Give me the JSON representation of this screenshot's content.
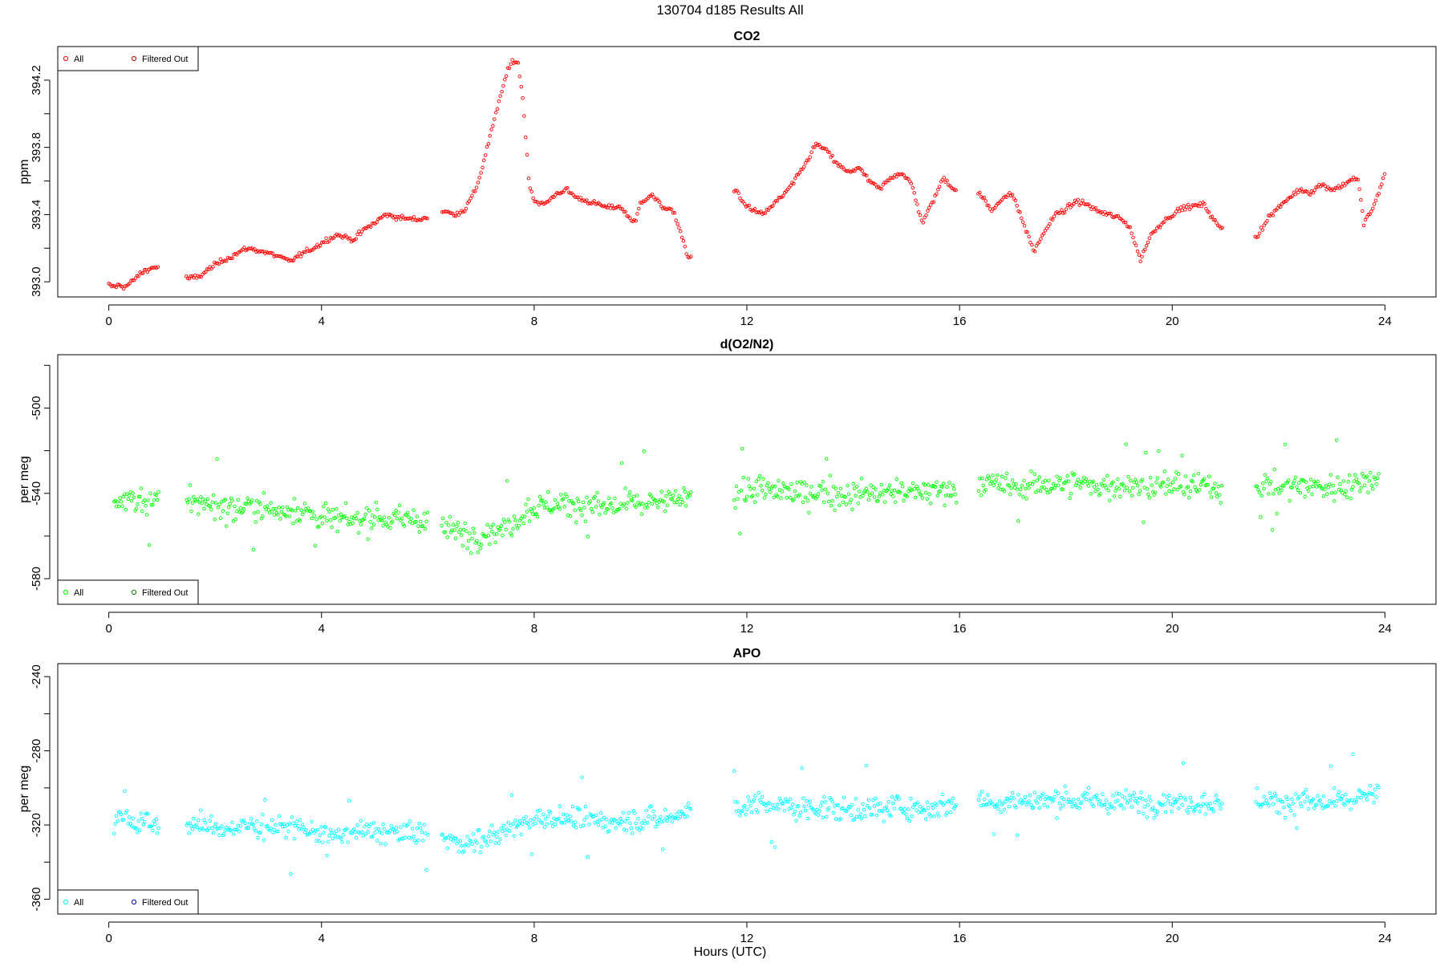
{
  "figure": {
    "title": "130704   d185   Results All",
    "xlabel": "Hours (UTC)"
  },
  "chart_data": [
    {
      "type": "scatter",
      "title": "CO2",
      "xlabel": "",
      "ylabel": "ppm",
      "xlim": [
        -0.96,
        24.96
      ],
      "ylim": [
        392.91,
        394.4
      ],
      "xticks": [
        0,
        4,
        8,
        12,
        16,
        20,
        24
      ],
      "yticks": [
        393.0,
        393.2,
        393.4,
        393.6,
        393.8,
        394.0,
        394.2
      ],
      "ytick_labels": [
        "393.0",
        "",
        "393.4",
        "",
        "393.8",
        "",
        "394.2"
      ],
      "legend": {
        "position": "top-left",
        "entries": [
          {
            "label": "All",
            "color": "#ff0000"
          },
          {
            "label": "Filtered Out",
            "color": "#cc0000"
          }
        ]
      },
      "color": "#ff0000",
      "series": [
        {
          "name": "All",
          "x": [
            0.0,
            0.1,
            0.2,
            0.3,
            0.4,
            0.5,
            0.6,
            0.7,
            0.8,
            0.9,
            1.5,
            1.7,
            1.9,
            2.1,
            2.3,
            2.6,
            2.9,
            3.2,
            3.4,
            3.6,
            3.9,
            4.1,
            4.3,
            4.6,
            4.8,
            5.0,
            5.2,
            5.5,
            5.8,
            5.95,
            6.3,
            6.5,
            6.7,
            6.9,
            7.0,
            7.1,
            7.2,
            7.3,
            7.4,
            7.5,
            7.6,
            7.7,
            7.8,
            7.9,
            8.0,
            8.2,
            8.4,
            8.6,
            8.8,
            9.0,
            9.2,
            9.4,
            9.6,
            9.8,
            9.9,
            10.0,
            10.2,
            10.4,
            10.6,
            10.7,
            10.8,
            10.9,
            11.8,
            11.9,
            12.1,
            12.3,
            12.5,
            12.7,
            12.9,
            13.1,
            13.3,
            13.5,
            13.7,
            13.9,
            14.1,
            14.3,
            14.5,
            14.7,
            14.9,
            15.1,
            15.3,
            15.5,
            15.7,
            15.9,
            16.4,
            16.6,
            16.8,
            17.0,
            17.2,
            17.4,
            17.6,
            17.8,
            18.0,
            18.2,
            18.4,
            18.6,
            18.8,
            19.0,
            19.2,
            19.4,
            19.6,
            19.8,
            20.0,
            20.2,
            20.4,
            20.6,
            20.8,
            20.9,
            21.6,
            21.8,
            22.0,
            22.2,
            22.4,
            22.6,
            22.8,
            23.0,
            23.2,
            23.4,
            23.5,
            23.6,
            23.7,
            23.8,
            23.9,
            24.0
          ],
          "y": [
            392.98,
            392.97,
            392.98,
            392.97,
            392.99,
            393.02,
            393.05,
            393.07,
            393.08,
            393.09,
            393.02,
            393.03,
            393.08,
            393.12,
            393.15,
            393.2,
            393.18,
            393.15,
            393.12,
            393.16,
            393.21,
            393.25,
            393.28,
            393.25,
            393.31,
            393.35,
            393.4,
            393.38,
            393.37,
            393.38,
            393.42,
            393.4,
            393.43,
            393.55,
            393.65,
            393.78,
            393.9,
            394.02,
            394.15,
            394.25,
            394.32,
            394.3,
            394.05,
            393.6,
            393.48,
            393.46,
            393.52,
            393.55,
            393.5,
            393.48,
            393.46,
            393.44,
            393.45,
            393.38,
            393.35,
            393.47,
            393.52,
            393.45,
            393.42,
            393.35,
            393.25,
            393.13,
            393.55,
            393.48,
            393.43,
            393.4,
            393.46,
            393.52,
            393.6,
            393.7,
            393.82,
            393.78,
            393.7,
            393.65,
            393.68,
            393.6,
            393.55,
            393.62,
            393.65,
            393.58,
            393.35,
            393.48,
            393.62,
            393.55,
            393.52,
            393.42,
            393.5,
            393.52,
            393.35,
            393.18,
            393.3,
            393.4,
            393.43,
            393.48,
            393.46,
            393.42,
            393.4,
            393.38,
            393.33,
            393.13,
            393.28,
            393.35,
            393.4,
            393.44,
            393.45,
            393.46,
            393.36,
            393.32,
            393.27,
            393.38,
            393.44,
            393.5,
            393.55,
            393.53,
            393.58,
            393.55,
            393.57,
            393.62,
            393.6,
            393.35,
            393.4,
            393.45,
            393.55,
            393.64
          ]
        }
      ]
    },
    {
      "type": "scatter",
      "title": "d(O2/N2)",
      "xlabel": "",
      "ylabel": "per meg",
      "xlim": [
        -0.96,
        24.96
      ],
      "ylim": [
        -592.0,
        -475.0
      ],
      "xticks": [
        0,
        4,
        8,
        12,
        16,
        20,
        24
      ],
      "yticks": [
        -580,
        -560,
        -540,
        -520,
        -500,
        -480
      ],
      "ytick_labels": [
        "-580",
        "",
        "-540",
        "",
        "-500",
        ""
      ],
      "legend": {
        "position": "bottom-left",
        "entries": [
          {
            "label": "All",
            "color": "#00ff00"
          },
          {
            "label": "Filtered Out",
            "color": "#008800"
          }
        ]
      },
      "color": "#00ff00",
      "series": [
        {
          "name": "All",
          "x": [
            0.1,
            0.3,
            0.5,
            0.7,
            0.8,
            1.6,
            1.9,
            2.3,
            2.7,
            3.1,
            3.5,
            3.9,
            4.3,
            4.7,
            5.1,
            5.5,
            5.8,
            6.4,
            6.8,
            7.2,
            7.6,
            7.9,
            8.3,
            8.7,
            9.1,
            9.5,
            9.9,
            10.3,
            10.7,
            10.9,
            11.8,
            12.2,
            12.6,
            13.0,
            13.4,
            13.8,
            14.2,
            14.6,
            15.0,
            15.4,
            15.8,
            16.4,
            16.8,
            17.2,
            17.6,
            18.0,
            18.4,
            18.8,
            19.2,
            19.6,
            20.0,
            20.4,
            20.8,
            20.9,
            21.6,
            22.0,
            22.4,
            22.8,
            23.2,
            23.6,
            23.9
          ],
          "y": [
            -545,
            -542,
            -543,
            -544,
            -545,
            -543,
            -545,
            -547,
            -546,
            -548,
            -547,
            -550,
            -553,
            -552,
            -551,
            -553,
            -552,
            -557,
            -560,
            -558,
            -554,
            -547,
            -545,
            -545,
            -546,
            -546,
            -545,
            -545,
            -543,
            -540,
            -540,
            -538,
            -539,
            -540,
            -539,
            -541,
            -540,
            -540,
            -539,
            -540,
            -538,
            -535,
            -537,
            -536,
            -536,
            -535,
            -536,
            -537,
            -536,
            -537,
            -536,
            -537,
            -537,
            -539,
            -535,
            -537,
            -536,
            -537,
            -537,
            -534,
            -532
          ]
        }
      ]
    },
    {
      "type": "scatter",
      "title": "APO",
      "xlabel": "Hours (UTC)",
      "ylabel": "per meg",
      "xlim": [
        -0.96,
        24.96
      ],
      "ylim": [
        -368.0,
        -233.0
      ],
      "xticks": [
        0,
        4,
        8,
        12,
        16,
        20,
        24
      ],
      "yticks": [
        -360,
        -340,
        -320,
        -300,
        -280,
        -260,
        -240
      ],
      "ytick_labels": [
        "-360",
        "",
        "-320",
        "",
        "-280",
        "",
        "-240"
      ],
      "legend": {
        "position": "bottom-left",
        "entries": [
          {
            "label": "All",
            "color": "#00ffff"
          },
          {
            "label": "Filtered Out",
            "color": "#0000aa"
          }
        ]
      },
      "color": "#00ffff",
      "series": [
        {
          "name": "All",
          "x": [
            0.1,
            0.3,
            0.5,
            0.7,
            0.8,
            1.6,
            1.9,
            2.3,
            2.7,
            3.1,
            3.5,
            3.9,
            4.3,
            4.7,
            5.1,
            5.5,
            5.8,
            6.4,
            6.8,
            7.2,
            7.6,
            7.9,
            8.3,
            8.7,
            9.1,
            9.5,
            9.9,
            10.3,
            10.7,
            10.9,
            11.8,
            12.2,
            12.6,
            13.0,
            13.4,
            13.8,
            14.2,
            14.6,
            15.0,
            15.4,
            15.8,
            16.4,
            16.8,
            17.2,
            17.6,
            18.0,
            18.4,
            18.8,
            19.2,
            19.6,
            20.0,
            20.4,
            20.8,
            20.9,
            21.6,
            22.0,
            22.4,
            22.8,
            23.2,
            23.6,
            23.9
          ],
          "y": [
            -318,
            -316,
            -319,
            -318,
            -320,
            -320,
            -321,
            -322,
            -320,
            -321,
            -322,
            -324,
            -326,
            -324,
            -323,
            -325,
            -324,
            -328,
            -330,
            -326,
            -322,
            -317,
            -316,
            -317,
            -318,
            -318,
            -317,
            -317,
            -315,
            -312,
            -310,
            -309,
            -310,
            -311,
            -310,
            -312,
            -311,
            -311,
            -310,
            -311,
            -309,
            -306,
            -308,
            -307,
            -307,
            -306,
            -307,
            -308,
            -307,
            -308,
            -307,
            -308,
            -308,
            -310,
            -306,
            -308,
            -307,
            -308,
            -308,
            -305,
            -303
          ]
        }
      ]
    }
  ]
}
